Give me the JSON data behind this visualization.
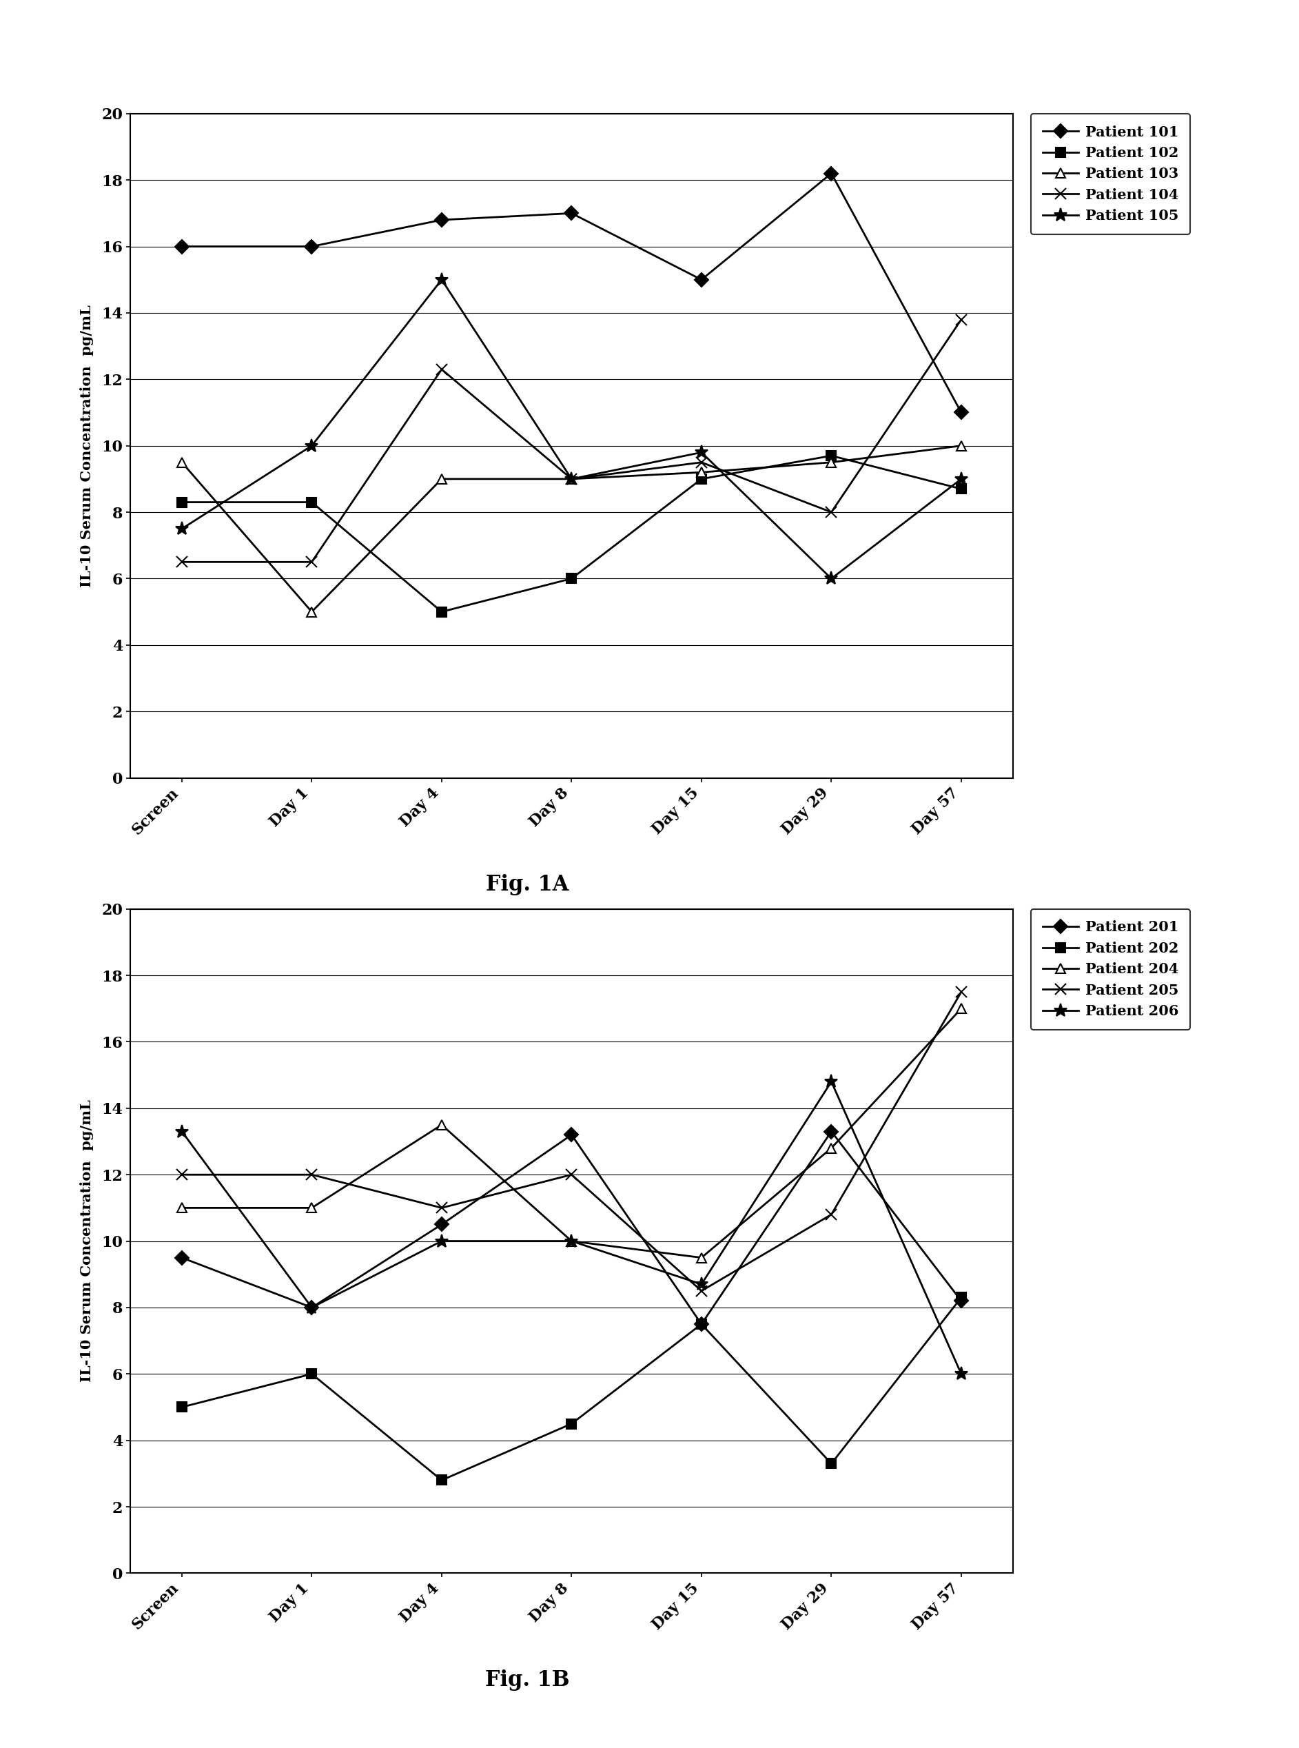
{
  "x_labels": [
    "Screen",
    "Day 1",
    "Day 4",
    "Day 8",
    "Day 15",
    "Day 29",
    "Day 57"
  ],
  "fig1A": {
    "title": "Fig. 1A",
    "ylabel": "IL-10 Serum Concentration  pg/mL",
    "ylim": [
      0,
      20
    ],
    "yticks": [
      0,
      2,
      4,
      6,
      8,
      10,
      12,
      14,
      16,
      18,
      20
    ],
    "series": [
      {
        "label": "Patient 101",
        "values": [
          16.0,
          16.0,
          16.8,
          17.0,
          15.0,
          18.2,
          11.0
        ],
        "marker": "D",
        "color": "#000000",
        "markersize": 10,
        "markerfacecolor": "#000000",
        "linestyle": "-",
        "linewidth": 2.0
      },
      {
        "label": "Patient 102",
        "values": [
          8.3,
          8.3,
          5.0,
          6.0,
          9.0,
          9.7,
          8.7
        ],
        "marker": "s",
        "color": "#000000",
        "markersize": 10,
        "markerfacecolor": "#000000",
        "linestyle": "-",
        "linewidth": 2.0
      },
      {
        "label": "Patient 103",
        "values": [
          9.5,
          5.0,
          9.0,
          9.0,
          9.2,
          9.5,
          10.0
        ],
        "marker": "^",
        "color": "#000000",
        "markersize": 10,
        "markerfacecolor": "#ffffff",
        "linestyle": "-",
        "linewidth": 2.0
      },
      {
        "label": "Patient 104",
        "values": [
          6.5,
          6.5,
          12.3,
          9.0,
          9.5,
          8.0,
          13.8
        ],
        "marker": "x",
        "color": "#000000",
        "markersize": 12,
        "markerfacecolor": "#000000",
        "linestyle": "-",
        "linewidth": 2.0
      },
      {
        "label": "Patient 105",
        "values": [
          7.5,
          10.0,
          15.0,
          9.0,
          9.8,
          6.0,
          9.0
        ],
        "marker": "*",
        "color": "#000000",
        "markersize": 14,
        "markerfacecolor": "#000000",
        "linestyle": "-",
        "linewidth": 2.0
      }
    ]
  },
  "fig1B": {
    "title": "Fig. 1B",
    "ylabel": "IL-10 Serum Concentration  pg/mL",
    "ylim": [
      0,
      20
    ],
    "yticks": [
      0,
      2,
      4,
      6,
      8,
      10,
      12,
      14,
      16,
      18,
      20
    ],
    "series": [
      {
        "label": "Patient 201",
        "values": [
          9.5,
          8.0,
          10.5,
          13.2,
          7.5,
          13.3,
          8.2
        ],
        "marker": "D",
        "color": "#000000",
        "markersize": 10,
        "markerfacecolor": "#000000",
        "linestyle": "-",
        "linewidth": 2.0
      },
      {
        "label": "Patient 202",
        "values": [
          5.0,
          6.0,
          2.8,
          4.5,
          7.5,
          3.3,
          8.3
        ],
        "marker": "s",
        "color": "#000000",
        "markersize": 10,
        "markerfacecolor": "#000000",
        "linestyle": "-",
        "linewidth": 2.0
      },
      {
        "label": "Patient 204",
        "values": [
          11.0,
          11.0,
          13.5,
          10.0,
          9.5,
          12.8,
          17.0
        ],
        "marker": "^",
        "color": "#000000",
        "markersize": 10,
        "markerfacecolor": "#ffffff",
        "linestyle": "-",
        "linewidth": 2.0
      },
      {
        "label": "Patient 205",
        "values": [
          12.0,
          12.0,
          11.0,
          12.0,
          8.5,
          10.8,
          17.5
        ],
        "marker": "x",
        "color": "#000000",
        "markersize": 12,
        "markerfacecolor": "#000000",
        "linestyle": "-",
        "linewidth": 2.0
      },
      {
        "label": "Patient 206",
        "values": [
          13.3,
          8.0,
          10.0,
          10.0,
          8.7,
          14.8,
          6.0
        ],
        "marker": "*",
        "color": "#000000",
        "markersize": 14,
        "markerfacecolor": "#000000",
        "linestyle": "-",
        "linewidth": 2.0
      }
    ]
  },
  "background_color": "#ffffff",
  "fig_label_fontsize": 22,
  "tick_fontsize": 16,
  "ylabel_fontsize": 15,
  "legend_fontsize": 15
}
